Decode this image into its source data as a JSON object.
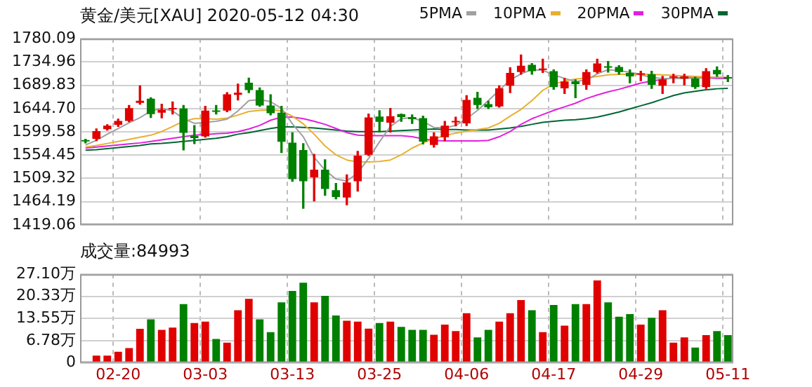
{
  "chart_data": [
    {
      "type": "candlestick",
      "title": "黄金/美元[XAU] 2020-05-12 04:30",
      "categories": [
        null,
        null,
        null,
        null,
        null,
        null,
        null,
        null,
        null,
        null,
        null,
        null,
        null,
        null,
        null,
        null,
        null,
        null,
        null,
        null,
        null,
        null,
        null,
        null,
        null,
        null,
        null,
        null,
        null,
        null,
        null,
        null,
        null,
        null,
        null,
        null,
        null,
        null,
        null,
        null,
        null,
        null,
        null,
        null,
        null,
        null,
        null,
        null,
        null,
        null,
        null,
        null,
        null,
        null,
        null,
        null,
        null,
        null,
        null,
        null
      ],
      "ohlc": [
        [
          1583,
          1585,
          1578,
          1581
        ],
        [
          1585.9,
          1605,
          1582.5,
          1600.8
        ],
        [
          1604.7,
          1613.3,
          1602.9,
          1611.3
        ],
        [
          1613.3,
          1624.1,
          1609.9,
          1620.7
        ],
        [
          1620.7,
          1650.6,
          1619,
          1645.6
        ],
        [
          1655.6,
          1688.8,
          1653.1,
          1659.7
        ],
        [
          1663.9,
          1665.6,
          1627.4,
          1634
        ],
        [
          1636.5,
          1653.1,
          1626.5,
          1642.3
        ],
        [
          1643.2,
          1657.3,
          1634,
          1644
        ],
        [
          1644.8,
          1650.6,
          1564.3,
          1597.5
        ],
        [
          1591.7,
          1611.6,
          1576.7,
          1587.5
        ],
        [
          1590.8,
          1648.9,
          1589.2,
          1640.6
        ],
        [
          1640.6,
          1650.6,
          1634,
          1638.2
        ],
        [
          1640.6,
          1675.5,
          1638.5,
          1672.2
        ],
        [
          1671.4,
          1692.1,
          1661.4,
          1675.5
        ],
        [
          1694.6,
          1703.7,
          1675.5,
          1680.5
        ],
        [
          1680.5,
          1684.7,
          1648.9,
          1650.6
        ],
        [
          1650.6,
          1671.4,
          1632.4,
          1635.7
        ],
        [
          1636.5,
          1648.9,
          1559.3,
          1580.1
        ],
        [
          1578.4,
          1597.5,
          1503.7,
          1507.9
        ],
        [
          1564.3,
          1576.7,
          1451.4,
          1503.7
        ],
        [
          1511.2,
          1556,
          1465.5,
          1526.2
        ],
        [
          1526.2,
          1545.2,
          1476.3,
          1488.8
        ],
        [
          1486.3,
          1499.6,
          1469.7,
          1473
        ],
        [
          1472.2,
          1516.2,
          1458.1,
          1501.2
        ],
        [
          1503.7,
          1561.8,
          1484.6,
          1553.5
        ],
        [
          1555.2,
          1634,
          1553.5,
          1627.4
        ],
        [
          1629,
          1640.6,
          1599.2,
          1619.1
        ],
        [
          1617.4,
          1644.8,
          1599.2,
          1629.9
        ],
        [
          1634,
          1634,
          1619.9,
          1628.2
        ],
        [
          1628.2,
          1632.4,
          1615.8,
          1624.1
        ],
        [
          1626,
          1630,
          1576,
          1580.5
        ],
        [
          1574.2,
          1597.5,
          1570,
          1590.8
        ],
        [
          1589.2,
          1619.9,
          1582.5,
          1611.6
        ],
        [
          1618,
          1628,
          1611,
          1620
        ],
        [
          1615.8,
          1669.7,
          1611.6,
          1661.4
        ],
        [
          1665.6,
          1676.3,
          1644.8,
          1651.4
        ],
        [
          1653.1,
          1658.9,
          1644.8,
          1647.3
        ],
        [
          1648.9,
          1688.8,
          1647.3,
          1683.8
        ],
        [
          1688.8,
          1723.7,
          1675.5,
          1713.7
        ],
        [
          1715.4,
          1748.6,
          1711.2,
          1727.8
        ],
        [
          1729.5,
          1732,
          1711.2,
          1717
        ],
        [
          1719.5,
          1740.3,
          1714.5,
          1720.5
        ],
        [
          1717,
          1719.5,
          1682.2,
          1686.3
        ],
        [
          1683.8,
          1702.9,
          1673.9,
          1697.1
        ],
        [
          1697.1,
          1700.4,
          1665.6,
          1692.1
        ],
        [
          1690.5,
          1719.5,
          1682.2,
          1715.4
        ],
        [
          1715.4,
          1740.3,
          1713.7,
          1732
        ],
        [
          1725.4,
          1736,
          1715.4,
          1724
        ],
        [
          1725.4,
          1727.8,
          1711.2,
          1715.4
        ],
        [
          1713.7,
          1719.5,
          1694.6,
          1707.1
        ],
        [
          1710.4,
          1717,
          1698.7,
          1711.2
        ],
        [
          1711.2,
          1717,
          1683.8,
          1690.5
        ],
        [
          1688.8,
          1707.1,
          1673.9,
          1701.2
        ],
        [
          1704.6,
          1711.2,
          1694.6,
          1705.4
        ],
        [
          1702.9,
          1711.2,
          1690.5,
          1707.1
        ],
        [
          1702.9,
          1705.4,
          1683.8,
          1686.3
        ],
        [
          1686.3,
          1722,
          1683.8,
          1717
        ],
        [
          1719.5,
          1725.4,
          1707.1,
          1711.2
        ],
        [
          1704.6,
          1708.7,
          1697.1,
          1702.9
        ]
      ],
      "colors": [
        "#008000",
        "#e00000",
        "#e00000",
        "#e00000",
        "#e00000",
        "#e00000",
        "#008000",
        "#e00000",
        "#e00000",
        "#008000",
        "#008000",
        "#e00000",
        "#008000",
        "#e00000",
        "#e00000",
        "#008000",
        "#008000",
        "#008000",
        "#008000",
        "#008000",
        "#008000",
        "#e00000",
        "#008000",
        "#008000",
        "#e00000",
        "#e00000",
        "#e00000",
        "#008000",
        "#e00000",
        "#008000",
        "#008000",
        "#008000",
        "#e00000",
        "#e00000",
        "#e00000",
        "#e00000",
        "#008000",
        "#008000",
        "#e00000",
        "#e00000",
        "#e00000",
        "#008000",
        "#e00000",
        "#008000",
        "#e00000",
        "#008000",
        "#e00000",
        "#e00000",
        "#008000",
        "#008000",
        "#008000",
        "#e00000",
        "#008000",
        "#e00000",
        "#e00000",
        "#e00000",
        "#008000",
        "#e00000",
        "#008000",
        "#008000"
      ],
      "series": [
        {
          "name": "5PMA",
          "type": "line",
          "color": "#a0a0a0",
          "values": [
            1574,
            1583,
            1595,
            1606,
            1617,
            1627,
            1640,
            1645,
            1640,
            1625,
            1616,
            1618,
            1620,
            1624,
            1640,
            1660,
            1662,
            1658,
            1645,
            1615,
            1590,
            1550,
            1525,
            1508,
            1504,
            1520,
            1548,
            1580,
            1610,
            1625,
            1627,
            1620,
            1608,
            1607,
            1612,
            1625,
            1641,
            1660,
            1680,
            1700,
            1712,
            1720,
            1719,
            1710,
            1703,
            1697,
            1700,
            1712,
            1720,
            1718,
            1715,
            1710,
            1705,
            1703,
            1703,
            1703,
            1704,
            1704,
            1705,
            1705
          ]
        },
        {
          "name": "10PMA",
          "type": "line",
          "color": "#e8b030",
          "values": [
            1570,
            1573,
            1577,
            1581,
            1585,
            1589,
            1593,
            1600,
            1610,
            1620,
            1625,
            1625,
            1624,
            1626,
            1632,
            1639,
            1641,
            1642,
            1640,
            1630,
            1615,
            1595,
            1572,
            1555,
            1545,
            1541,
            1541,
            1542,
            1545,
            1555,
            1568,
            1578,
            1586,
            1592,
            1597,
            1601,
            1604,
            1607,
            1616,
            1630,
            1643,
            1660,
            1680,
            1692,
            1698,
            1702,
            1704,
            1707,
            1710,
            1711,
            1711,
            1711,
            1711,
            1710,
            1709,
            1708,
            1707,
            1706,
            1705,
            1705
          ]
        },
        {
          "name": "20PMA",
          "type": "line",
          "color": "#e020e0",
          "values": [
            1568,
            1570,
            1572,
            1574,
            1576,
            1578,
            1581,
            1584,
            1587,
            1590,
            1593,
            1594,
            1596,
            1597,
            1600,
            1605,
            1612,
            1622,
            1628,
            1628,
            1625,
            1620,
            1614,
            1606,
            1598,
            1593,
            1592,
            1592,
            1592,
            1592,
            1590,
            1586,
            1583,
            1582,
            1582,
            1582,
            1582,
            1583,
            1590,
            1600,
            1614,
            1625,
            1633,
            1641,
            1648,
            1655,
            1664,
            1671,
            1677,
            1682,
            1688,
            1694,
            1698,
            1701,
            1704,
            1705,
            1705,
            1704,
            1703,
            1703
          ]
        },
        {
          "name": "30PMA",
          "type": "line",
          "color": "#006633",
          "values": [
            1564,
            1565,
            1567,
            1569,
            1571,
            1573,
            1576,
            1577,
            1579,
            1581,
            1583,
            1585,
            1587,
            1590,
            1595,
            1598,
            1602,
            1606,
            1609,
            1609,
            1608,
            1607,
            1605,
            1603,
            1601,
            1600,
            1600,
            1600,
            1601,
            1602,
            1603,
            1604,
            1605,
            1604,
            1604,
            1603,
            1603,
            1603,
            1605,
            1607,
            1610,
            1614,
            1618,
            1620,
            1622,
            1623,
            1625,
            1628,
            1633,
            1638,
            1644,
            1650,
            1656,
            1663,
            1670,
            1675,
            1678,
            1681,
            1683,
            1684
          ]
        }
      ],
      "ylim": [
        1419.06,
        1780.09
      ],
      "yticks": [
        1419.06,
        1464.19,
        1509.32,
        1554.45,
        1599.58,
        {
          "value": 1644.7,
          "label": "1644.70"
        },
        1689.83,
        1734.96,
        1780.09
      ],
      "grid": true,
      "legend": "top right",
      "tick_labels": "y"
    },
    {
      "type": "bar",
      "title": "成交量:84993",
      "categories": [
        null,
        null,
        null,
        "02-20",
        null,
        null,
        null,
        null,
        null,
        null,
        null,
        "03-03",
        null,
        null,
        null,
        null,
        null,
        null,
        null,
        "03-13",
        null,
        null,
        null,
        null,
        null,
        null,
        null,
        "03-25",
        null,
        null,
        null,
        null,
        null,
        null,
        null,
        "04-06",
        null,
        null,
        null,
        null,
        null,
        null,
        null,
        "04-17",
        null,
        null,
        null,
        null,
        null,
        null,
        null,
        "04-29",
        null,
        null,
        null,
        null,
        null,
        null,
        null,
        "05-11"
      ],
      "values": [
        0.3,
        2.2,
        2.2,
        3.4,
        4.5,
        10.4,
        13.3,
        10.1,
        10.8,
        18,
        12.2,
        12.6,
        7.3,
        6.2,
        16.1,
        19.6,
        13.3,
        9.4,
        18.5,
        22,
        24.5,
        18.5,
        20.5,
        14.5,
        12.9,
        12.6,
        10.5,
        12.2,
        12.6,
        11,
        10.1,
        10.1,
        8.6,
        11.7,
        9.7,
        15.2,
        7.8,
        10.1,
        12.6,
        15.2,
        19.2,
        16.1,
        9.4,
        17.7,
        11.4,
        18,
        18,
        25.2,
        18.5,
        14.1,
        14.9,
        11.7,
        13.8,
        16.1,
        6.2,
        7.8,
        4.7,
        8.5,
        9.7,
        8.5
      ],
      "colors": [
        "#008000",
        "#e00000",
        "#e00000",
        "#e00000",
        "#e00000",
        "#e00000",
        "#008000",
        "#e00000",
        "#e00000",
        "#008000",
        "#e00000",
        "#e00000",
        "#008000",
        "#e00000",
        "#e00000",
        "#e00000",
        "#008000",
        "#008000",
        "#008000",
        "#008000",
        "#008000",
        "#e00000",
        "#008000",
        "#008000",
        "#e00000",
        "#e00000",
        "#e00000",
        "#008000",
        "#e00000",
        "#008000",
        "#008000",
        "#008000",
        "#e00000",
        "#e00000",
        "#e00000",
        "#e00000",
        "#008000",
        "#008000",
        "#e00000",
        "#e00000",
        "#e00000",
        "#008000",
        "#e00000",
        "#008000",
        "#e00000",
        "#008000",
        "#e00000",
        "#e00000",
        "#008000",
        "#008000",
        "#008000",
        "#e00000",
        "#008000",
        "#e00000",
        "#e00000",
        "#e00000",
        "#008000",
        "#e00000",
        "#008000",
        "#008000"
      ],
      "ylim": [
        0,
        27.1
      ],
      "yticks": [
        0,
        {
          "value": 6.78,
          "label": "6.78万"
        },
        {
          "value": 13.55,
          "label": "13.55万"
        },
        {
          "value": 20.33,
          "label": "20.33万"
        },
        {
          "value": 27.1,
          "label": "27.10万"
        }
      ],
      "grid": true
    }
  ]
}
